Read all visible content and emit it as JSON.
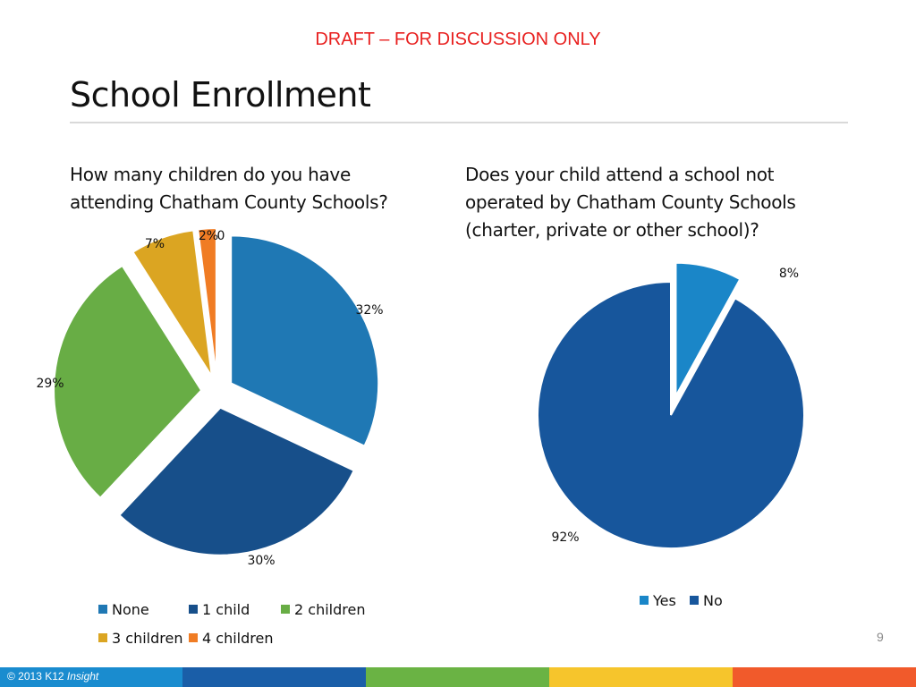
{
  "header": {
    "draft_banner": "DRAFT – FOR DISCUSSION ONLY",
    "title": "School Enrollment"
  },
  "footer": {
    "page_number": "9",
    "copyright": "© 2013 K12",
    "copyright_brand": "Insight",
    "band_colors": [
      "#1a8ccf",
      "#1a5ea8",
      "#6ab344",
      "#f6c52c",
      "#f15a2b"
    ]
  },
  "chart_data": [
    {
      "type": "pie",
      "title": "How many children do you have\nattending Chatham County Schools?",
      "categories": [
        "None",
        "1 child",
        "2 children",
        "3 children",
        "4 children"
      ],
      "values": [
        32,
        30,
        29,
        7,
        2
      ],
      "labels": [
        "32%",
        "30%",
        "29%",
        "7%",
        "2%"
      ],
      "extra_label": "0",
      "colors": [
        "#1f78b4",
        "#174f8a",
        "#68ad45",
        "#dba522",
        "#f07c24"
      ],
      "legend_position": "bottom"
    },
    {
      "type": "pie",
      "title": "Does your child attend a school not\noperated by Chatham County Schools\n(charter, private or other school)?",
      "categories": [
        "Yes",
        "No"
      ],
      "values": [
        8,
        92
      ],
      "labels": [
        "8%",
        "92%"
      ],
      "colors": [
        "#1a86c8",
        "#17569c"
      ],
      "legend_position": "bottom"
    }
  ]
}
